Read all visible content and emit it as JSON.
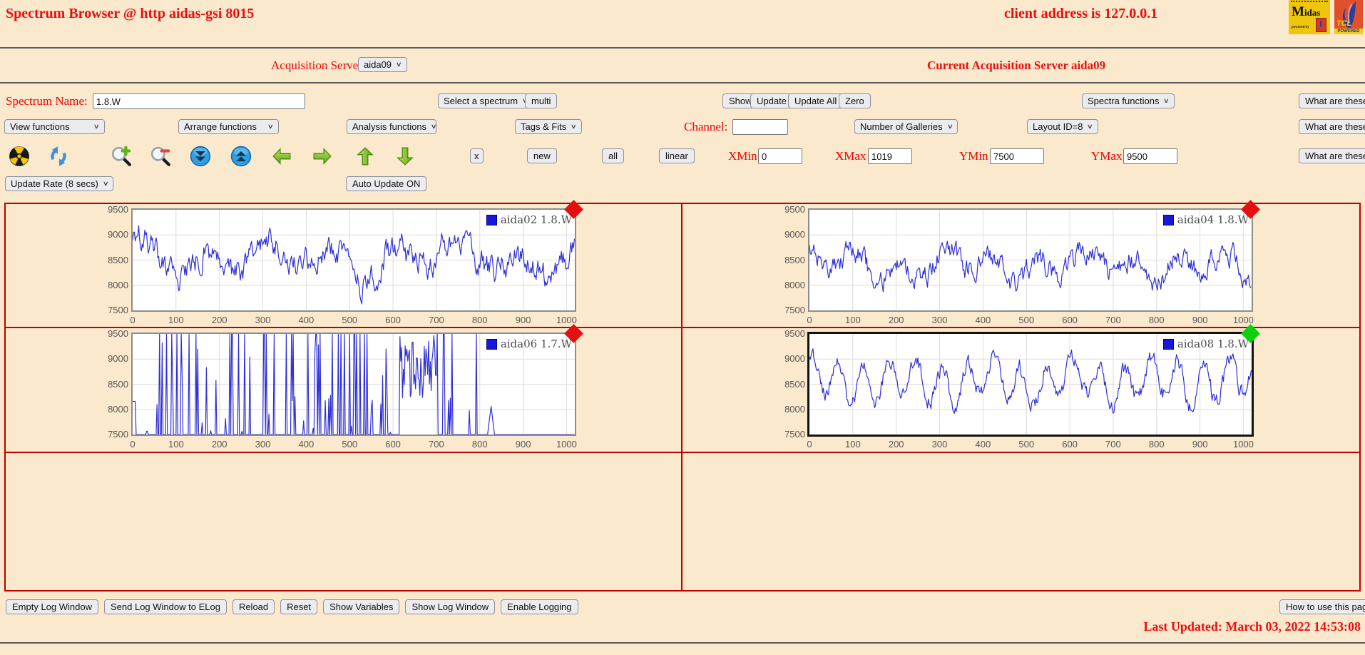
{
  "theme": {
    "background": "#fbe9cd",
    "label_red": "#f40000",
    "table_border": "#bf0000",
    "series_blue": "#3030d8"
  },
  "header": {
    "title": "Spectrum Browser @ http aidas-gsi 8015",
    "client_address": "client address is 127.0.0.1"
  },
  "logos": {
    "midas": {
      "brand_initial": "M",
      "brand_rest": "idas",
      "powered": "powered by"
    },
    "tcl": {
      "brand": "TCL",
      "powered": "POWERED"
    }
  },
  "acquisition": {
    "label": "Acquisition Servers",
    "selected": "aida09",
    "current": "Current Acquisition Server aida09"
  },
  "spectrum_row": {
    "name_label": "Spectrum Name:",
    "name_value": "1.8.W",
    "select_spectrum": "Select a spectrum",
    "multi": "multi",
    "show": "Show",
    "update": "Update",
    "update_all": "Update All",
    "zero": "Zero",
    "spectra_functions": "Spectra functions",
    "what": "What are these?"
  },
  "function_row": {
    "view": "View functions",
    "arrange": "Arrange functions",
    "analysis": "Analysis functions",
    "tags": "Tags & Fits",
    "channel_label": "Channel:",
    "channel_value": "",
    "galleries": "Number of Galleries",
    "layout": "Layout ID=8",
    "what": "What are these?"
  },
  "toolbar": {
    "icons": [
      "radiation-icon",
      "refresh-icon",
      "zoom-in-icon",
      "zoom-out-icon",
      "move-down-icon",
      "move-up-icon",
      "arrow-left-icon",
      "arrow-right-icon",
      "arrow-up-icon",
      "arrow-down-icon"
    ],
    "x": "x",
    "new": "new",
    "all": "all",
    "linear": "linear",
    "xmin_label": "XMin",
    "xmin": "0",
    "xmax_label": "XMax",
    "xmax": "1019",
    "ymin_label": "YMin",
    "ymin": "7500",
    "ymax_label": "YMax",
    "ymax": "9500",
    "what": "What are these?"
  },
  "update_row": {
    "rate": "Update Rate (8 secs)",
    "auto": "Auto Update ON"
  },
  "log_buttons": [
    "Empty Log Window",
    "Send Log Window to ELog",
    "Reload",
    "Reset",
    "Show Variables",
    "Show Log Window",
    "Enable Logging"
  ],
  "help_button": "How to use this page",
  "last_updated": "Last Updated: March 03, 2022 14:53:08",
  "chart_data": [
    {
      "id": "aida02",
      "type": "line",
      "legend": "aida02 1.8.W",
      "series_color": "#3030d8",
      "marker_color": "#e60f0f",
      "selected": false,
      "xlim": [
        0,
        1019
      ],
      "ylim": [
        7500,
        9500
      ],
      "x_ticks": [
        0,
        100,
        200,
        300,
        400,
        500,
        600,
        700,
        800,
        900,
        1000
      ],
      "y_ticks": [
        7500,
        8000,
        8500,
        9000,
        9500
      ],
      "pattern": "noise",
      "seed": 2101,
      "base": 8520,
      "amp1": 260,
      "per1": 23,
      "phase1": 0.6,
      "amp2": 190,
      "per2": 61,
      "phase2": 2.1,
      "smooth": 0.72,
      "step": 430
    },
    {
      "id": "aida04",
      "type": "line",
      "legend": "aida04 1.8.W",
      "series_color": "#3030d8",
      "marker_color": "#e60f0f",
      "selected": false,
      "xlim": [
        0,
        1019
      ],
      "ylim": [
        7500,
        9500
      ],
      "x_ticks": [
        0,
        100,
        200,
        300,
        400,
        500,
        600,
        700,
        800,
        900,
        1000
      ],
      "y_ticks": [
        7500,
        8000,
        8500,
        9000,
        9500
      ],
      "pattern": "noise",
      "seed": 4307,
      "base": 8400,
      "amp1": 210,
      "per1": 17,
      "phase1": 1.9,
      "amp2": 150,
      "per2": 47,
      "phase2": 0.4,
      "smooth": 0.7,
      "step": 360
    },
    {
      "id": "aida06",
      "type": "line",
      "legend": "aida06 1.7.W",
      "series_color": "#3030d8",
      "marker_color": "#e60f0f",
      "selected": false,
      "xlim": [
        0,
        1019
      ],
      "ylim": [
        7500,
        9500
      ],
      "x_ticks": [
        0,
        100,
        200,
        300,
        400,
        500,
        600,
        700,
        800,
        900,
        1000
      ],
      "y_ticks": [
        7500,
        8000,
        8500,
        9000,
        9500
      ],
      "pattern": "spikes",
      "seed": 6611,
      "spike_start": 55,
      "spike_end": 792,
      "mid_start": 615,
      "mid_end": 700,
      "bump_x": 826
    },
    {
      "id": "aida08",
      "type": "line",
      "legend": "aida08 1.8.W",
      "series_color": "#3030d8",
      "marker_color": "#0ed00e",
      "selected": true,
      "xlim": [
        0,
        1019
      ],
      "ylim": [
        7500,
        9500
      ],
      "x_ticks": [
        0,
        100,
        200,
        300,
        400,
        500,
        600,
        700,
        800,
        900,
        1000
      ],
      "y_ticks": [
        7500,
        8000,
        8500,
        9000,
        9500
      ],
      "pattern": "noise",
      "seed": 8809,
      "base": 8560,
      "amp1": 370,
      "per1": 9.6,
      "phase1": 1.2,
      "amp2": 140,
      "per2": 31,
      "phase2": 0.8,
      "smooth": 0.55,
      "step": 270
    }
  ]
}
